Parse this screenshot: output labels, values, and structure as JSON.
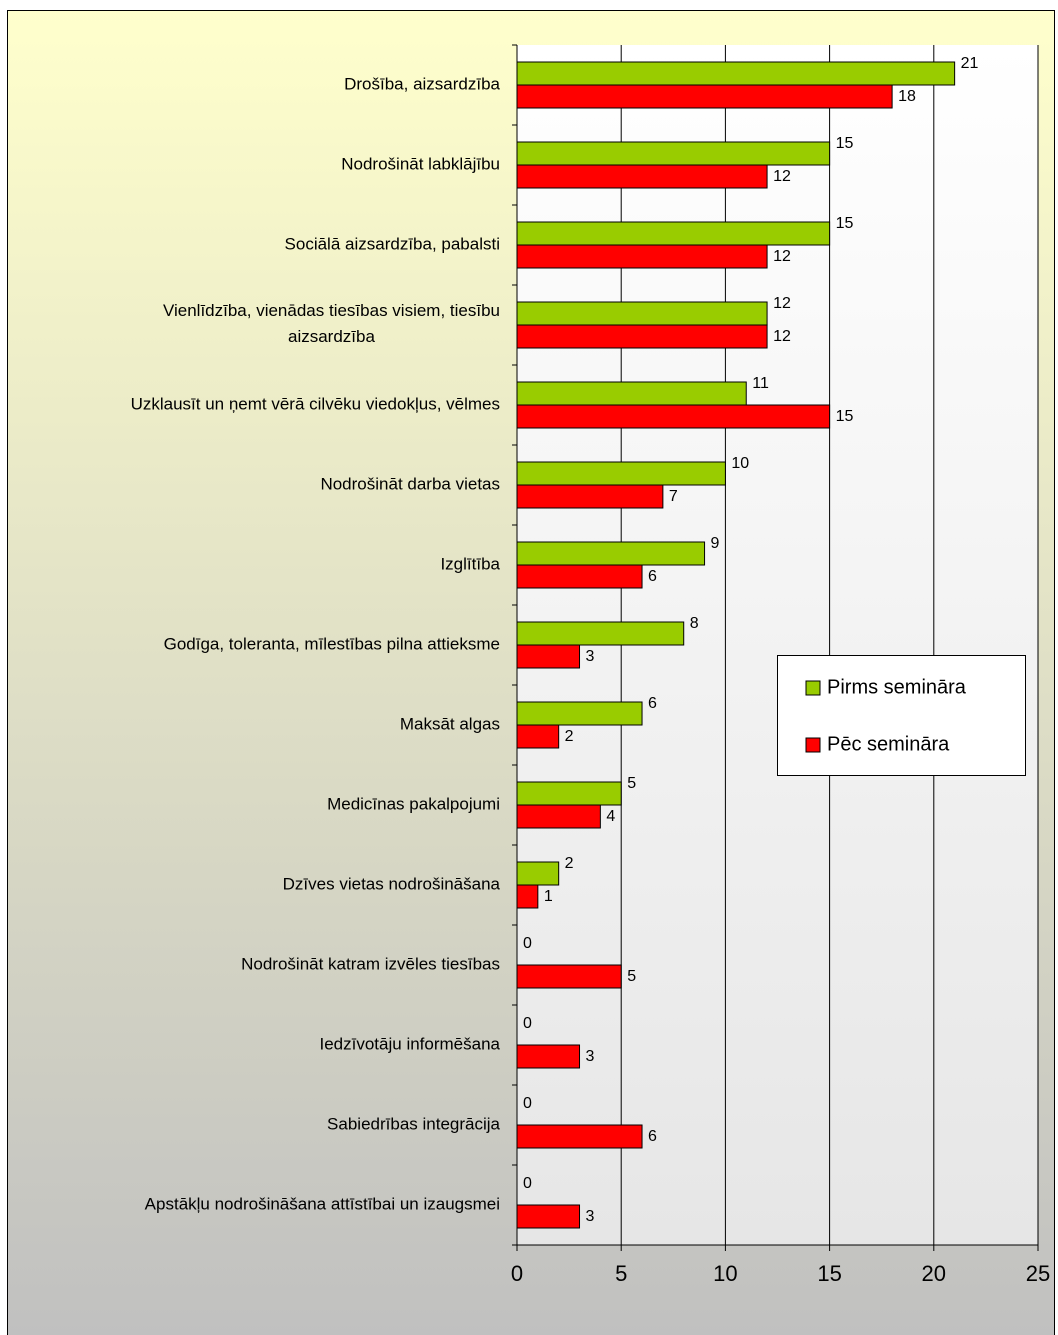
{
  "chart_data": {
    "type": "bar",
    "orientation": "horizontal",
    "categories": [
      "Drošība, aizsardzība",
      "Nodrošināt labklājību",
      "Sociālā aizsardzība, pabalsti",
      "Vienlīdzība, vienādas tiesības visiem, tiesību\naizsardzība",
      "Uzklausīt un ņemt vērā cilvēku viedokļus, vēlmes",
      "Nodrošināt darba vietas",
      "Izglītība",
      "Godīga, toleranta, mīlestības pilna attieksme",
      "Maksāt algas",
      "Medicīnas pakalpojumi",
      "Dzīves vietas nodrošināšana",
      "Nodrošināt katram izvēles tiesības",
      "Iedzīvotāju informēšana",
      "Sabiedrības integrācija",
      "Apstākļu nodrošināšana attīstībai un izaugsmei"
    ],
    "series": [
      {
        "name": "Pirms semināra",
        "color": "#99cc00",
        "values": [
          21,
          15,
          15,
          12,
          11,
          10,
          9,
          8,
          6,
          5,
          2,
          0,
          0,
          0,
          0
        ]
      },
      {
        "name": "Pēc semināra",
        "color": "#ff0000",
        "values": [
          18,
          12,
          12,
          12,
          15,
          7,
          6,
          3,
          2,
          4,
          1,
          5,
          3,
          6,
          3
        ]
      }
    ],
    "xlim": [
      0,
      25
    ],
    "xticks": [
      0,
      5,
      10,
      15,
      20,
      25
    ],
    "grid": true,
    "legend": "right"
  }
}
